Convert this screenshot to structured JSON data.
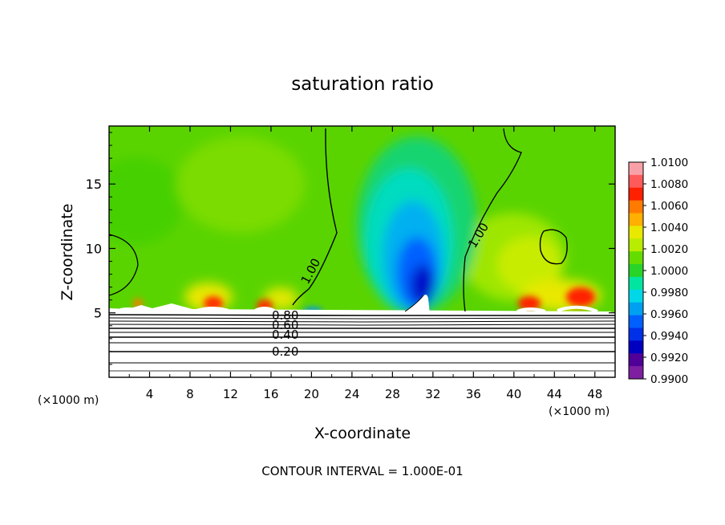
{
  "chart_data": {
    "type": "heatmap",
    "title": "saturation ratio",
    "xlabel": "X-coordinate",
    "ylabel": "Z-coordinate",
    "x_unit": "(×1000 m)",
    "xlim": [
      0,
      50
    ],
    "ylim": [
      0,
      19.5
    ],
    "x_ticks": [
      4,
      8,
      12,
      16,
      20,
      24,
      28,
      32,
      36,
      40,
      44,
      48
    ],
    "y_ticks": [
      5,
      10,
      15
    ],
    "colorbar": {
      "min": 0.99,
      "max": 1.01,
      "ticks": [
        "1.0100",
        "1.0080",
        "1.0060",
        "1.0040",
        "1.0020",
        "1.0000",
        "0.9980",
        "0.9960",
        "0.9940",
        "0.9920",
        "0.9900"
      ],
      "colors": [
        "#f8a0a8",
        "#ff5a5a",
        "#ff2000",
        "#ff7a00",
        "#ffb000",
        "#e8e800",
        "#b8ec00",
        "#64dc00",
        "#28d428",
        "#00e6a0",
        "#00d8e8",
        "#00a0f0",
        "#0060ff",
        "#0030e8",
        "#0000c0",
        "#500098",
        "#7d1fa0"
      ]
    },
    "contour_labels": [
      "1.00",
      "1.00",
      "0.80",
      "0.60",
      "0.40",
      "0.20"
    ],
    "contour_interval_note": "CONTOUR INTERVAL = 1.000E-01",
    "field_summary": {
      "upper_domain": "≈1.000 (green) above z≈5.5",
      "dry_column": "minimum ≈0.992 near x≈30, z≈6–7",
      "moist_spots": "≈1.006–1.008 near z≈5.5 at x≈10, 15, 41, 47",
      "lower_layer": "stratified, 0.10 to 0.90 below z≈5"
    }
  }
}
